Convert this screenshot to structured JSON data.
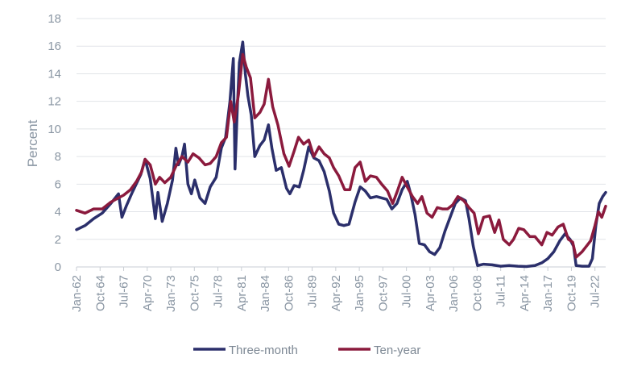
{
  "chart_data": {
    "type": "line",
    "title": "",
    "xlabel": "",
    "ylabel": "Percent",
    "ylim": [
      0,
      18
    ],
    "yticks": [
      0,
      2,
      4,
      6,
      8,
      10,
      12,
      14,
      16,
      18
    ],
    "xlim": [
      1962.0,
      2023.75
    ],
    "x_ticks": [
      {
        "label": "Jan-62",
        "value": 1962.0
      },
      {
        "label": "Oct-64",
        "value": 1964.75
      },
      {
        "label": "Jul-67",
        "value": 1967.5
      },
      {
        "label": "Apr-70",
        "value": 1970.25
      },
      {
        "label": "Jan-73",
        "value": 1973.0
      },
      {
        "label": "Oct-75",
        "value": 1975.75
      },
      {
        "label": "Jul-78",
        "value": 1978.5
      },
      {
        "label": "Apr-81",
        "value": 1981.25
      },
      {
        "label": "Jan-84",
        "value": 1984.0
      },
      {
        "label": "Oct-86",
        "value": 1986.75
      },
      {
        "label": "Jul-89",
        "value": 1989.5
      },
      {
        "label": "Apr-92",
        "value": 1992.25
      },
      {
        "label": "Jan-95",
        "value": 1995.0
      },
      {
        "label": "Oct-97",
        "value": 1997.75
      },
      {
        "label": "Jul-00",
        "value": 2000.5
      },
      {
        "label": "Apr-03",
        "value": 2003.25
      },
      {
        "label": "Jan-06",
        "value": 2006.0
      },
      {
        "label": "Oct-08",
        "value": 2008.75
      },
      {
        "label": "Jul-11",
        "value": 2011.5
      },
      {
        "label": "Apr-14",
        "value": 2014.25
      },
      {
        "label": "Jan-17",
        "value": 2017.0
      },
      {
        "label": "Oct-19",
        "value": 2019.75
      },
      {
        "label": "Jul-22",
        "value": 2022.5
      }
    ],
    "legend": "bottom-center",
    "series": [
      {
        "name": "Three-month",
        "color": "#2b2f6b",
        "points": [
          [
            1962.0,
            2.7
          ],
          [
            1963.0,
            3.0
          ],
          [
            1964.0,
            3.5
          ],
          [
            1965.0,
            3.9
          ],
          [
            1966.0,
            4.6
          ],
          [
            1966.9,
            5.3
          ],
          [
            1967.3,
            3.6
          ],
          [
            1967.8,
            4.4
          ],
          [
            1968.5,
            5.4
          ],
          [
            1969.5,
            6.7
          ],
          [
            1970.0,
            7.8
          ],
          [
            1970.6,
            6.4
          ],
          [
            1971.2,
            3.5
          ],
          [
            1971.5,
            5.4
          ],
          [
            1972.0,
            3.3
          ],
          [
            1972.6,
            4.6
          ],
          [
            1973.2,
            6.3
          ],
          [
            1973.6,
            8.6
          ],
          [
            1973.9,
            7.4
          ],
          [
            1974.3,
            8.0
          ],
          [
            1974.6,
            8.9
          ],
          [
            1975.0,
            6.0
          ],
          [
            1975.4,
            5.3
          ],
          [
            1975.8,
            6.3
          ],
          [
            1976.4,
            5.0
          ],
          [
            1977.0,
            4.6
          ],
          [
            1977.6,
            5.8
          ],
          [
            1978.3,
            6.5
          ],
          [
            1978.9,
            8.6
          ],
          [
            1979.4,
            9.4
          ],
          [
            1979.9,
            12.0
          ],
          [
            1980.3,
            15.1
          ],
          [
            1980.5,
            7.1
          ],
          [
            1980.8,
            12.0
          ],
          [
            1981.0,
            14.8
          ],
          [
            1981.4,
            16.3
          ],
          [
            1981.7,
            14.0
          ],
          [
            1982.0,
            12.4
          ],
          [
            1982.4,
            11.0
          ],
          [
            1982.8,
            8.0
          ],
          [
            1983.4,
            8.8
          ],
          [
            1983.9,
            9.2
          ],
          [
            1984.4,
            10.3
          ],
          [
            1984.8,
            8.6
          ],
          [
            1985.3,
            7.0
          ],
          [
            1985.9,
            7.2
          ],
          [
            1986.5,
            5.7
          ],
          [
            1986.9,
            5.3
          ],
          [
            1987.4,
            5.9
          ],
          [
            1988.0,
            5.8
          ],
          [
            1988.5,
            7.0
          ],
          [
            1989.1,
            8.7
          ],
          [
            1989.7,
            7.9
          ],
          [
            1990.3,
            7.7
          ],
          [
            1990.9,
            6.9
          ],
          [
            1991.5,
            5.5
          ],
          [
            1992.0,
            3.9
          ],
          [
            1992.6,
            3.1
          ],
          [
            1993.2,
            3.0
          ],
          [
            1993.8,
            3.1
          ],
          [
            1994.5,
            4.7
          ],
          [
            1995.1,
            5.8
          ],
          [
            1995.7,
            5.5
          ],
          [
            1996.3,
            5.0
          ],
          [
            1997.0,
            5.1
          ],
          [
            1997.6,
            5.0
          ],
          [
            1998.2,
            4.9
          ],
          [
            1998.8,
            4.2
          ],
          [
            1999.4,
            4.6
          ],
          [
            2000.0,
            5.6
          ],
          [
            2000.6,
            6.2
          ],
          [
            2001.0,
            5.3
          ],
          [
            2001.5,
            3.8
          ],
          [
            2002.0,
            1.7
          ],
          [
            2002.6,
            1.6
          ],
          [
            2003.2,
            1.1
          ],
          [
            2003.8,
            0.9
          ],
          [
            2004.4,
            1.4
          ],
          [
            2005.0,
            2.6
          ],
          [
            2005.6,
            3.6
          ],
          [
            2006.2,
            4.6
          ],
          [
            2006.8,
            5.0
          ],
          [
            2007.4,
            4.8
          ],
          [
            2007.8,
            3.5
          ],
          [
            2008.3,
            1.5
          ],
          [
            2008.8,
            0.1
          ],
          [
            2009.5,
            0.2
          ],
          [
            2010.5,
            0.15
          ],
          [
            2011.5,
            0.05
          ],
          [
            2012.5,
            0.1
          ],
          [
            2013.5,
            0.05
          ],
          [
            2014.5,
            0.03
          ],
          [
            2015.5,
            0.1
          ],
          [
            2016.3,
            0.3
          ],
          [
            2017.0,
            0.6
          ],
          [
            2017.7,
            1.1
          ],
          [
            2018.4,
            1.9
          ],
          [
            2019.0,
            2.4
          ],
          [
            2019.6,
            2.0
          ],
          [
            2020.0,
            1.5
          ],
          [
            2020.3,
            0.1
          ],
          [
            2021.0,
            0.05
          ],
          [
            2021.8,
            0.05
          ],
          [
            2022.2,
            0.6
          ],
          [
            2022.6,
            3.0
          ],
          [
            2023.0,
            4.6
          ],
          [
            2023.4,
            5.1
          ],
          [
            2023.75,
            5.4
          ]
        ]
      },
      {
        "name": "Ten-year",
        "color": "#8b1a3d",
        "points": [
          [
            1962.0,
            4.1
          ],
          [
            1963.0,
            3.9
          ],
          [
            1964.0,
            4.2
          ],
          [
            1965.0,
            4.2
          ],
          [
            1966.0,
            4.7
          ],
          [
            1966.9,
            5.0
          ],
          [
            1967.5,
            5.2
          ],
          [
            1968.3,
            5.6
          ],
          [
            1969.0,
            6.2
          ],
          [
            1969.6,
            6.9
          ],
          [
            1970.0,
            7.8
          ],
          [
            1970.6,
            7.4
          ],
          [
            1971.2,
            6.0
          ],
          [
            1971.7,
            6.5
          ],
          [
            1972.3,
            6.1
          ],
          [
            1973.0,
            6.5
          ],
          [
            1973.6,
            7.3
          ],
          [
            1974.3,
            8.0
          ],
          [
            1975.0,
            7.6
          ],
          [
            1975.6,
            8.2
          ],
          [
            1976.3,
            7.9
          ],
          [
            1977.0,
            7.4
          ],
          [
            1977.6,
            7.5
          ],
          [
            1978.3,
            8.0
          ],
          [
            1978.9,
            9.0
          ],
          [
            1979.5,
            9.4
          ],
          [
            1980.0,
            12.0
          ],
          [
            1980.4,
            10.5
          ],
          [
            1980.9,
            12.5
          ],
          [
            1981.4,
            15.4
          ],
          [
            1981.8,
            14.5
          ],
          [
            1982.3,
            13.7
          ],
          [
            1982.8,
            10.8
          ],
          [
            1983.4,
            11.2
          ],
          [
            1983.9,
            11.8
          ],
          [
            1984.4,
            13.6
          ],
          [
            1984.9,
            11.6
          ],
          [
            1985.5,
            10.3
          ],
          [
            1986.2,
            8.2
          ],
          [
            1986.8,
            7.3
          ],
          [
            1987.4,
            8.4
          ],
          [
            1987.9,
            9.4
          ],
          [
            1988.5,
            8.9
          ],
          [
            1989.1,
            9.2
          ],
          [
            1989.7,
            8.0
          ],
          [
            1990.3,
            8.7
          ],
          [
            1990.9,
            8.2
          ],
          [
            1991.5,
            7.9
          ],
          [
            1992.0,
            7.2
          ],
          [
            1992.6,
            6.6
          ],
          [
            1993.3,
            5.6
          ],
          [
            1993.9,
            5.6
          ],
          [
            1994.5,
            7.2
          ],
          [
            1995.1,
            7.6
          ],
          [
            1995.7,
            6.2
          ],
          [
            1996.3,
            6.6
          ],
          [
            1997.0,
            6.5
          ],
          [
            1997.6,
            6.0
          ],
          [
            1998.3,
            5.5
          ],
          [
            1998.9,
            4.6
          ],
          [
            1999.5,
            5.6
          ],
          [
            2000.0,
            6.5
          ],
          [
            2000.6,
            5.8
          ],
          [
            2001.2,
            5.1
          ],
          [
            2001.8,
            4.6
          ],
          [
            2002.3,
            5.1
          ],
          [
            2002.9,
            3.9
          ],
          [
            2003.5,
            3.6
          ],
          [
            2004.1,
            4.3
          ],
          [
            2004.7,
            4.2
          ],
          [
            2005.3,
            4.2
          ],
          [
            2005.9,
            4.5
          ],
          [
            2006.5,
            5.1
          ],
          [
            2007.2,
            4.8
          ],
          [
            2007.8,
            4.3
          ],
          [
            2008.4,
            3.9
          ],
          [
            2008.9,
            2.4
          ],
          [
            2009.5,
            3.6
          ],
          [
            2010.2,
            3.7
          ],
          [
            2010.8,
            2.5
          ],
          [
            2011.3,
            3.4
          ],
          [
            2011.8,
            2.0
          ],
          [
            2012.5,
            1.6
          ],
          [
            2013.0,
            2.0
          ],
          [
            2013.6,
            2.8
          ],
          [
            2014.2,
            2.7
          ],
          [
            2014.9,
            2.2
          ],
          [
            2015.5,
            2.2
          ],
          [
            2016.3,
            1.6
          ],
          [
            2016.9,
            2.5
          ],
          [
            2017.5,
            2.3
          ],
          [
            2018.2,
            2.9
          ],
          [
            2018.8,
            3.1
          ],
          [
            2019.4,
            2.0
          ],
          [
            2019.9,
            1.8
          ],
          [
            2020.3,
            0.7
          ],
          [
            2021.0,
            1.1
          ],
          [
            2021.5,
            1.5
          ],
          [
            2022.0,
            1.9
          ],
          [
            2022.5,
            3.0
          ],
          [
            2022.9,
            4.0
          ],
          [
            2023.3,
            3.6
          ],
          [
            2023.75,
            4.4
          ]
        ]
      }
    ]
  }
}
